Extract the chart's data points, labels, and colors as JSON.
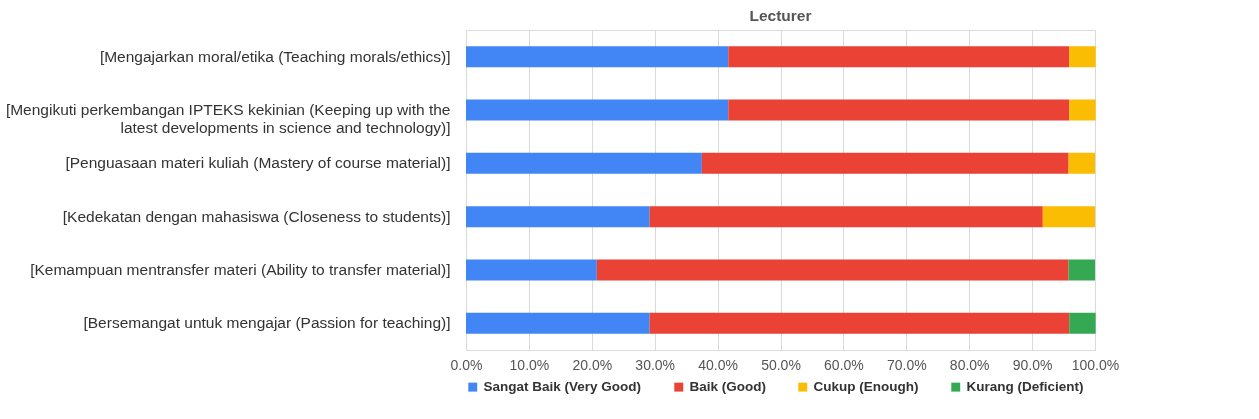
{
  "chart_data": {
    "type": "bar",
    "orientation": "horizontal",
    "stacked": true,
    "title": "Lecturer",
    "categories": [
      "[Mengajarkan  moral/etika (Teaching morals/ethics)]",
      "[Mengikuti perkembangan IPTEKS kekinian (Keeping up with the latest developments in science and technology)]",
      "[Penguasaan materi kuliah (Mastery of course material)]",
      "[Kedekatan dengan mahasiswa (Closeness to students)]",
      "[Kemampuan mentransfer materi (Ability to transfer material)]",
      "[Bersemangat untuk mengajar (Passion for teaching)]"
    ],
    "series": [
      {
        "name": "Sangat Baik (Very Good)",
        "color": "#4285f4",
        "values": [
          41.7,
          41.7,
          37.5,
          29.2,
          20.8,
          29.2
        ]
      },
      {
        "name": "Baik (Good)",
        "color": "#ea4335",
        "values": [
          54.2,
          54.2,
          58.3,
          62.5,
          75.0,
          66.7
        ]
      },
      {
        "name": "Cukup (Enough)",
        "color": "#fbbc04",
        "values": [
          4.2,
          4.2,
          4.2,
          8.3,
          null,
          null
        ]
      },
      {
        "name": "Kurang (Deficient)",
        "color": "#34a853",
        "values": [
          null,
          null,
          null,
          null,
          4.2,
          4.2
        ]
      }
    ],
    "xlim": [
      0,
      100
    ],
    "xticks": [
      {
        "value": 0,
        "label": "0.0%"
      },
      {
        "value": 10,
        "label": "10.0%"
      },
      {
        "value": 20,
        "label": "20.0%"
      },
      {
        "value": 30,
        "label": "30.0%"
      },
      {
        "value": 40,
        "label": "40.0%"
      },
      {
        "value": 50,
        "label": "50.0%"
      },
      {
        "value": 60,
        "label": "60.0%"
      },
      {
        "value": 70,
        "label": "70.0%"
      },
      {
        "value": 80,
        "label": "80.0%"
      },
      {
        "value": 90,
        "label": "90.0%"
      },
      {
        "value": 100,
        "label": "100.0%"
      }
    ],
    "grid": "x",
    "legend": "bottom"
  }
}
